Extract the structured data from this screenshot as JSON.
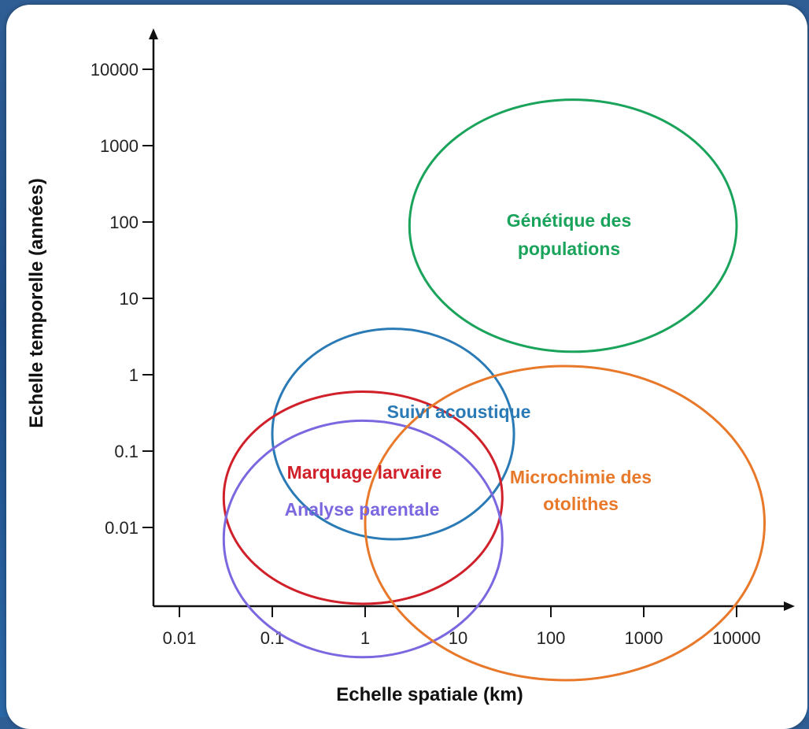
{
  "colors": {
    "genetique": "#1aa35a",
    "acoustique": "#2a7ab6",
    "marquage": "#d0202a",
    "analyse": "#7b68e0",
    "microchimie": "#e8782a"
  },
  "chart_data": {
    "type": "scatter",
    "xlabel": "Echelle spatiale (km)",
    "ylabel": "Echelle temporelle (années)",
    "x_scale": "log",
    "y_scale": "log",
    "x_ticks": [
      "0.01",
      "0.1",
      "1",
      "10",
      "100",
      "1000",
      "10000"
    ],
    "y_ticks": [
      "10000",
      "1000",
      "100",
      "10",
      "1",
      "0.1",
      "0.01"
    ],
    "regions": [
      {
        "id": "genetique",
        "label_lines": [
          "Génétique des",
          "populations"
        ],
        "x_range": [
          3,
          10000
        ],
        "y_range": [
          2,
          4000
        ]
      },
      {
        "id": "acoustique",
        "label_lines": [
          "Suivi acoustique"
        ],
        "x_range": [
          0.1,
          40
        ],
        "y_range": [
          0.007,
          4
        ]
      },
      {
        "id": "marquage",
        "label_lines": [
          "Marquage larvaire"
        ],
        "x_range": [
          0.03,
          30
        ],
        "y_range": [
          0.001,
          0.6
        ]
      },
      {
        "id": "analyse",
        "label_lines": [
          "Analyse parentale"
        ],
        "x_range": [
          0.03,
          30
        ],
        "y_range": [
          0.0002,
          0.25
        ]
      },
      {
        "id": "microchimie",
        "label_lines": [
          "Microchimie des",
          "otolithes"
        ],
        "x_range": [
          1,
          20000
        ],
        "y_range": [
          0.0001,
          1.3
        ]
      }
    ]
  }
}
